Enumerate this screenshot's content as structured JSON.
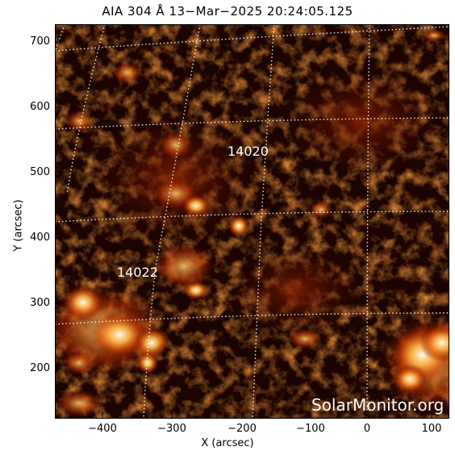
{
  "title": "AIA 304 Å 13−Mar−2025 20:24:05.125",
  "axes": {
    "xlabel": "X (arcsec)",
    "ylabel": "Y (arcsec)",
    "xticks": [
      "−400",
      "−300",
      "−200",
      "−100",
      "0",
      "100"
    ],
    "yticks": [
      "700",
      "600",
      "500",
      "400",
      "300",
      "200"
    ]
  },
  "regions": [
    "14020",
    "14022"
  ],
  "watermark": "SolarMonitor.org",
  "colors": {
    "background": "#150200",
    "dark": "#3a0800",
    "mid": "#a52500",
    "bright": "#ff8c1a",
    "hot": "#fff3d6",
    "grid": "#ffffff"
  }
}
